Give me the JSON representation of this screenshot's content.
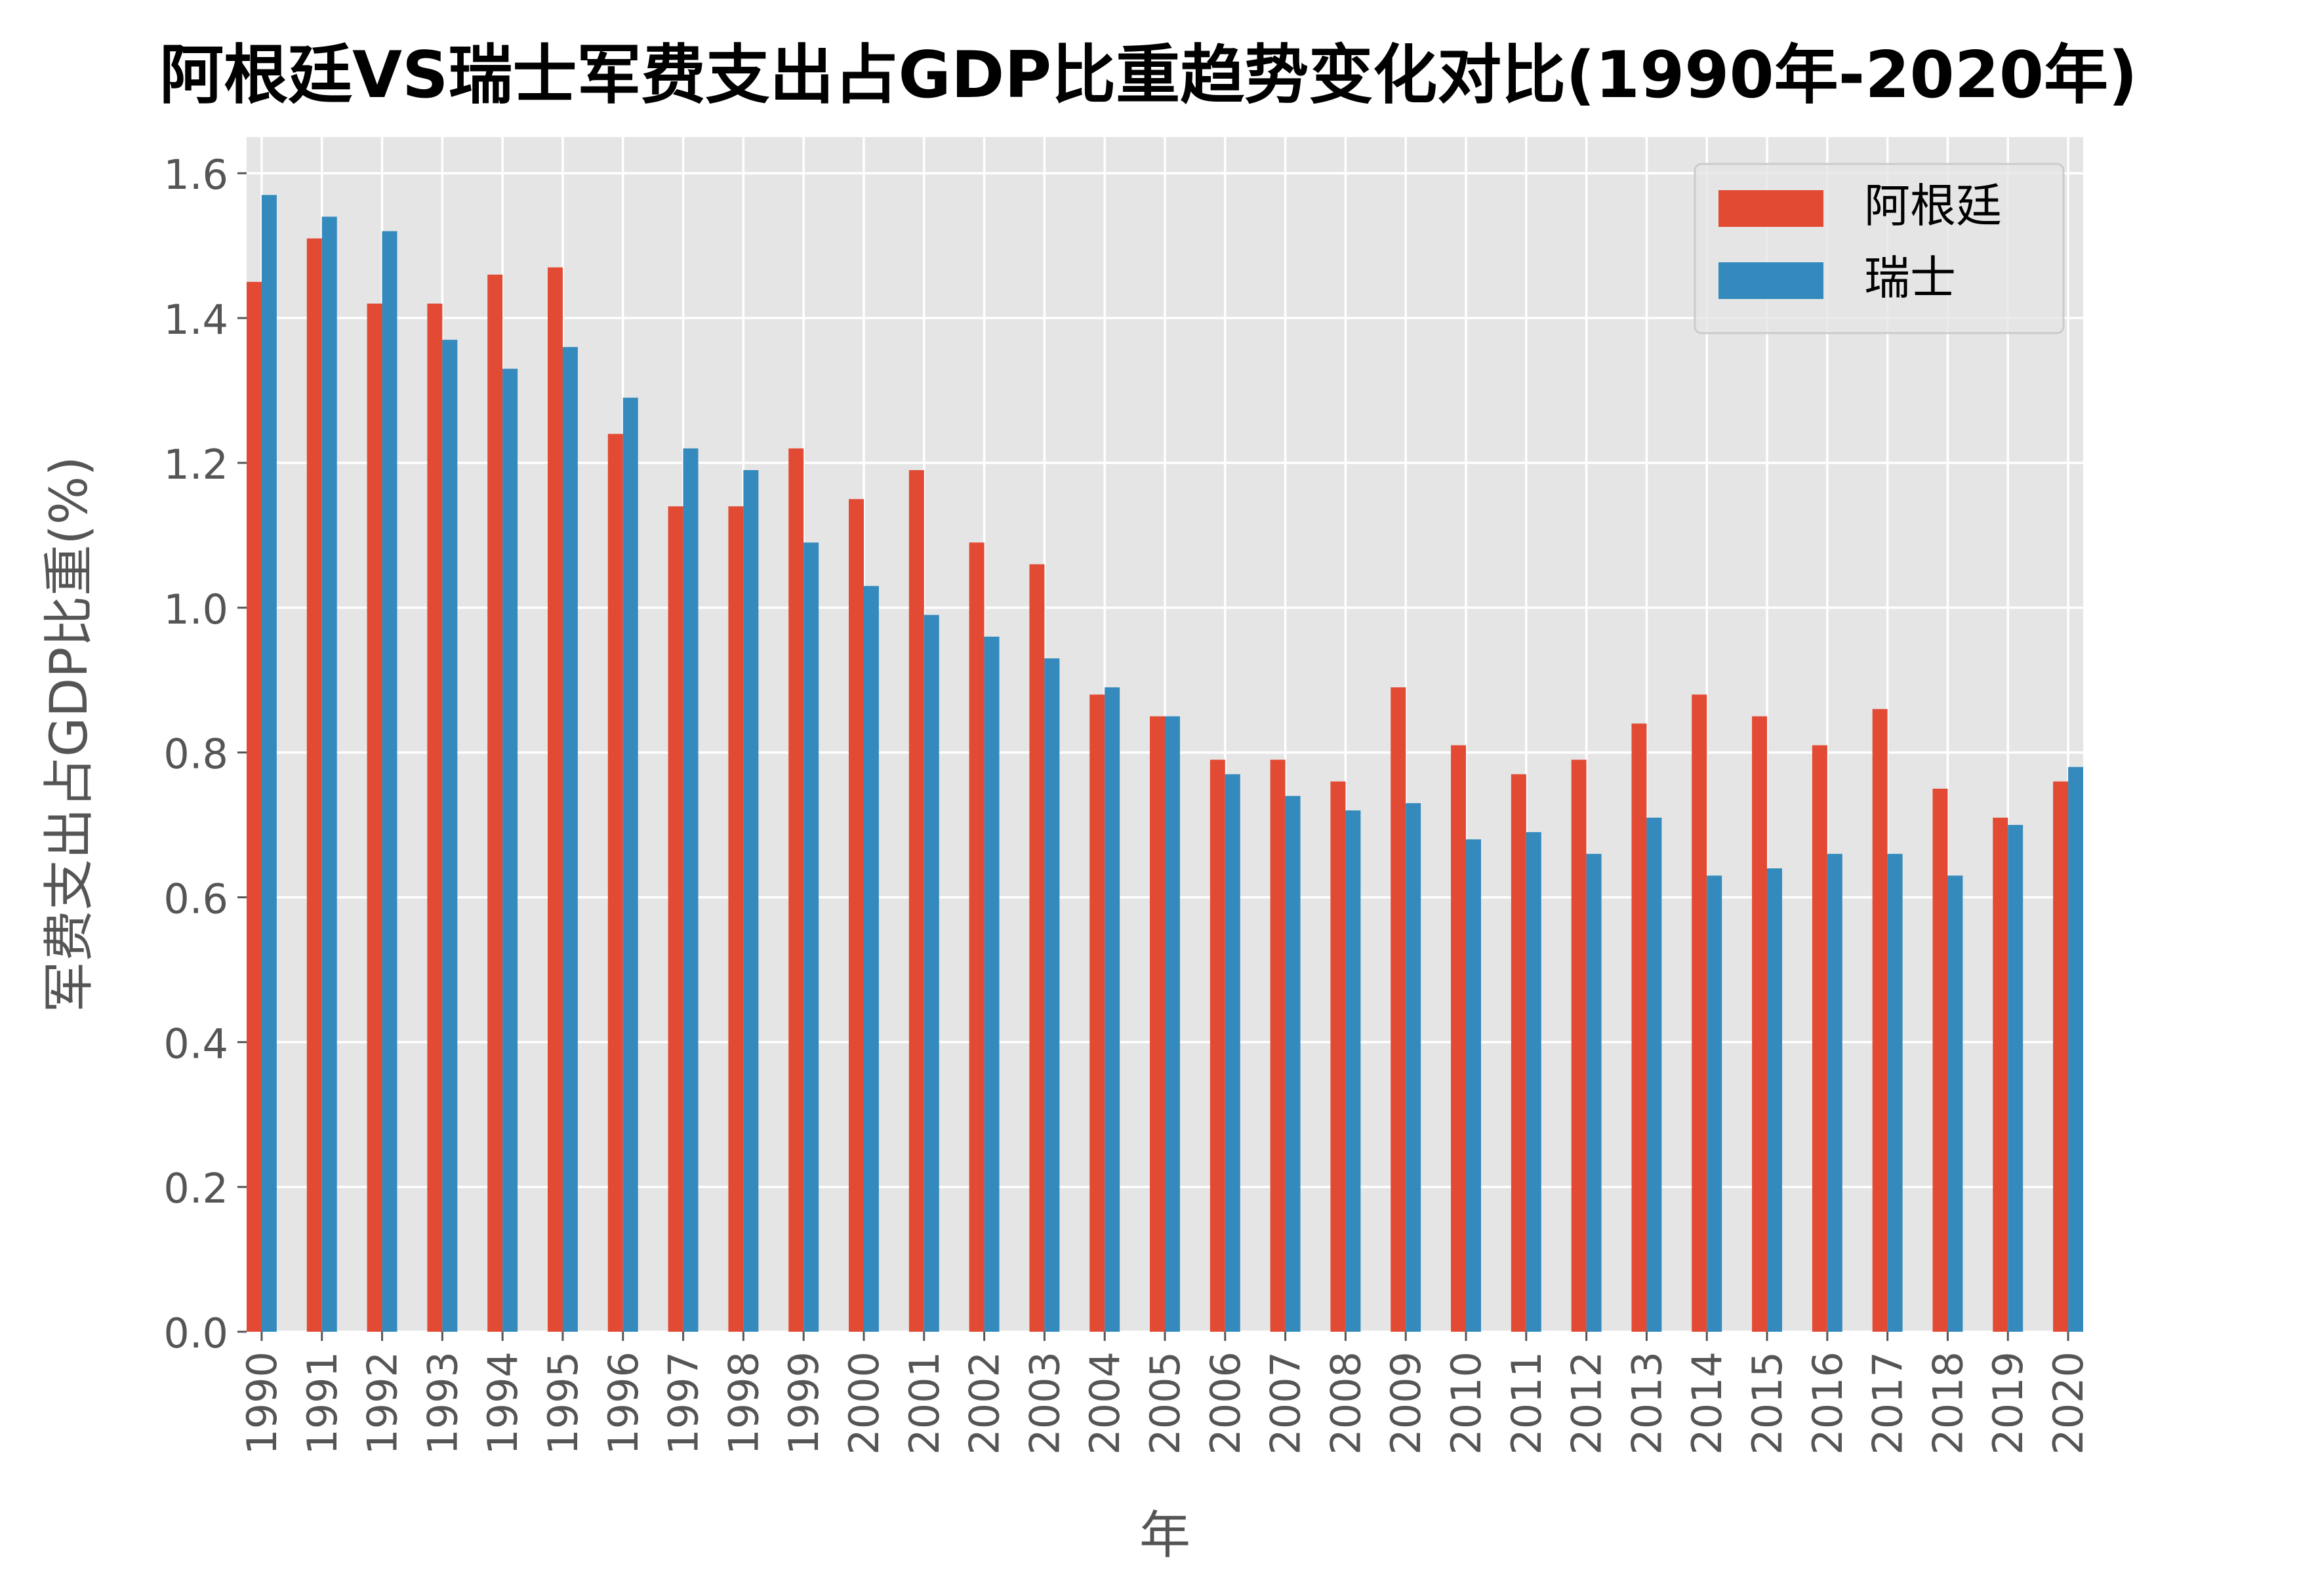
{
  "chart_data": {
    "type": "bar",
    "title": "阿根廷VS瑞士军费支出占GDP比重趋势变化对比(1990年-2020年)",
    "xlabel": "年",
    "ylabel": "军费支出占GDP比重(%)",
    "ylim": [
      0,
      1.65
    ],
    "yticks": [
      "0.0",
      "0.2",
      "0.4",
      "0.6",
      "0.8",
      "1.0",
      "1.2",
      "1.4",
      "1.6"
    ],
    "grid": true,
    "legend_position": "top-right",
    "categories": [
      "1990",
      "1991",
      "1992",
      "1993",
      "1994",
      "1995",
      "1996",
      "1997",
      "1998",
      "1999",
      "2000",
      "2001",
      "2002",
      "2003",
      "2004",
      "2005",
      "2006",
      "2007",
      "2008",
      "2009",
      "2010",
      "2011",
      "2012",
      "2013",
      "2014",
      "2015",
      "2016",
      "2017",
      "2018",
      "2019",
      "2020"
    ],
    "series": [
      {
        "name": "阿根廷",
        "color": "#e24a33",
        "values": [
          1.45,
          1.51,
          1.42,
          1.42,
          1.46,
          1.47,
          1.24,
          1.14,
          1.14,
          1.22,
          1.15,
          1.19,
          1.09,
          1.06,
          0.88,
          0.85,
          0.79,
          0.79,
          0.76,
          0.89,
          0.81,
          0.77,
          0.79,
          0.84,
          0.88,
          0.85,
          0.81,
          0.86,
          0.75,
          0.71,
          0.76
        ]
      },
      {
        "name": "瑞士",
        "color": "#348abd",
        "values": [
          1.57,
          1.54,
          1.52,
          1.37,
          1.33,
          1.36,
          1.29,
          1.22,
          1.19,
          1.09,
          1.03,
          0.99,
          0.96,
          0.93,
          0.89,
          0.85,
          0.77,
          0.74,
          0.72,
          0.73,
          0.68,
          0.69,
          0.66,
          0.71,
          0.63,
          0.64,
          0.66,
          0.66,
          0.63,
          0.7,
          0.78
        ]
      }
    ]
  }
}
